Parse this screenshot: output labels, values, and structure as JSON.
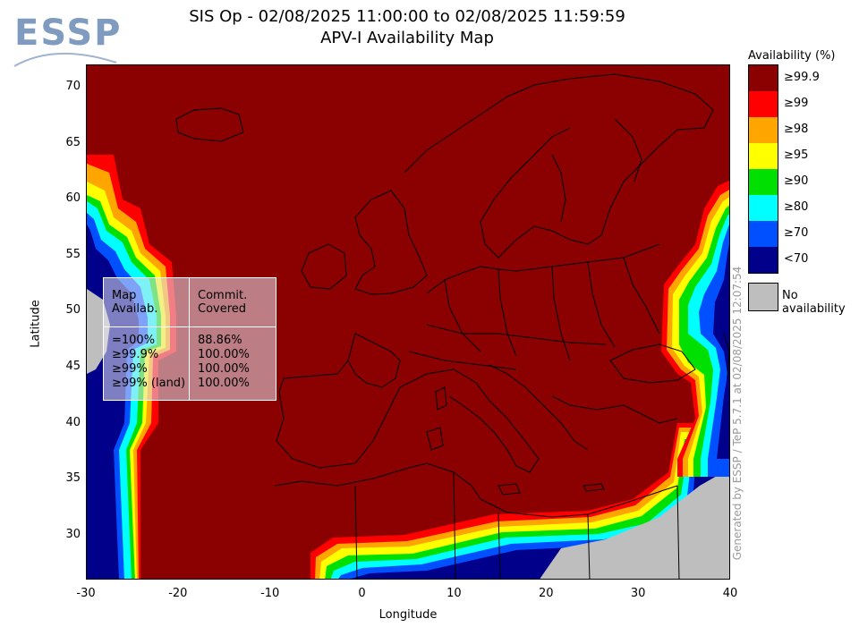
{
  "logo": {
    "text": "ESSP"
  },
  "title": {
    "line1": "SIS Op - 02/08/2025 11:00:00 to 02/08/2025 11:59:59",
    "line2": "APV-I Availability Map"
  },
  "axes": {
    "xlabel": "Longitude",
    "ylabel": "Latitude",
    "xticks": [
      "-30",
      "-20",
      "-10",
      "0",
      "10",
      "20",
      "30",
      "40"
    ],
    "yticks": [
      "70",
      "65",
      "60",
      "55",
      "50",
      "45",
      "40",
      "35",
      "30"
    ],
    "xlim": [
      -30,
      40
    ],
    "ylim": [
      26,
      72
    ]
  },
  "legend": {
    "title": "Availability (%)",
    "items": [
      {
        "label": "≥99.9",
        "color": "#8b0000"
      },
      {
        "label": "≥99",
        "color": "#ff0000"
      },
      {
        "label": "≥98",
        "color": "#ffa500"
      },
      {
        "label": "≥95",
        "color": "#ffff00"
      },
      {
        "label": "≥90",
        "color": "#00e000"
      },
      {
        "label": "≥80",
        "color": "#00ffff"
      },
      {
        "label": "≥70",
        "color": "#0050ff"
      },
      {
        "label": "<70",
        "color": "#00008b"
      }
    ],
    "no_availability": {
      "label": "No availability",
      "color": "#bebebe"
    }
  },
  "stats_table": {
    "headers": {
      "map": "Map\nAvailab.",
      "commit": "Commit.\nCovered"
    },
    "rows": [
      {
        "map": "=100%",
        "commit": "88.86%"
      },
      {
        "map": "≥99.9%",
        "commit": "100.00%"
      },
      {
        "map": "≥99%",
        "commit": "100.00%"
      },
      {
        "map": "≥99% (land)",
        "commit": "100.00%"
      }
    ]
  },
  "credit": "Generated by ESSP / TeP 5.7.1 at 02/08/2025 12:07:54"
}
